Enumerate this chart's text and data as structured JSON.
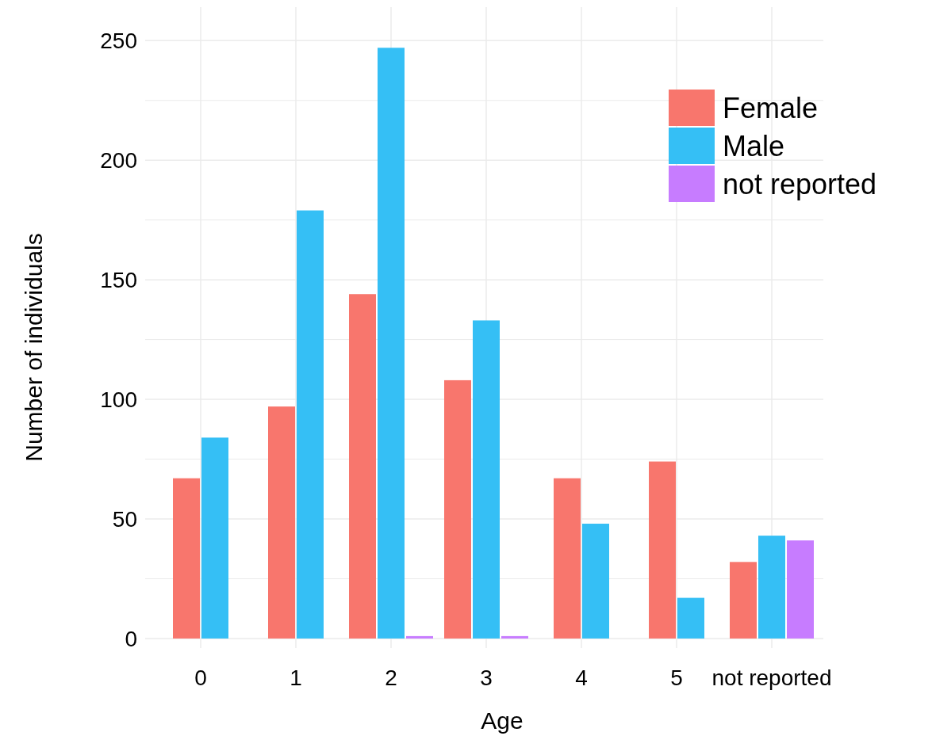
{
  "chart_data": {
    "type": "bar",
    "xlabel": "Age",
    "ylabel": "Number of individuals",
    "categories": [
      "0",
      "1",
      "2",
      "3",
      "4",
      "5",
      "not reported"
    ],
    "series": [
      {
        "name": "Female",
        "color": "#f8766d",
        "values": [
          67,
          97,
          144,
          108,
          67,
          74,
          32
        ]
      },
      {
        "name": "Male",
        "color": "#35bff5",
        "values": [
          84,
          179,
          247,
          133,
          48,
          17,
          43
        ]
      },
      {
        "name": "not reported",
        "color": "#c77cff",
        "values": [
          null,
          null,
          1,
          1,
          null,
          null,
          41
        ]
      }
    ],
    "ylim": [
      -4,
      264
    ],
    "yticks": [
      0,
      {
        "value": 25,
        "label": null
      },
      50,
      {
        "value": 75,
        "label": null
      },
      100,
      {
        "value": 125,
        "label": null
      },
      150,
      {
        "value": 175,
        "label": null
      },
      200,
      {
        "value": 225,
        "label": null
      },
      250
    ],
    "grid": true,
    "legend": "top right"
  }
}
